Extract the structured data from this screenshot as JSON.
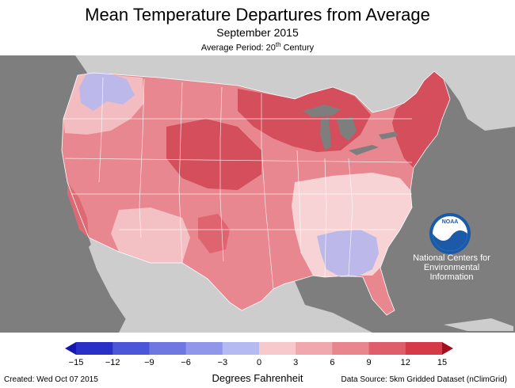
{
  "title": "Mean Temperature Departures from Average",
  "subtitle": "September 2015",
  "average_period": {
    "prefix": "Average Period: 20",
    "sup": "th",
    "suffix": " Century"
  },
  "logo": {
    "text": "NOAA",
    "icon": "noaa-logo-icon"
  },
  "institution": [
    "National Centers for",
    "Environmental",
    "Information"
  ],
  "legend": {
    "units": "Degrees Fahrenheit",
    "ticks": [
      "−15",
      "−12",
      "−9",
      "−6",
      "−3",
      "0",
      "3",
      "6",
      "9",
      "12",
      "15"
    ],
    "colors": [
      "#2a2fc8",
      "#4d55d8",
      "#6f77e0",
      "#9096ea",
      "#b6baf2",
      "#f7c9cd",
      "#f0a7ad",
      "#e8858d",
      "#de5f6b",
      "#d63a48"
    ],
    "end_low": "#1616b0",
    "end_high": "#a01020"
  },
  "map_colors": {
    "ocean": "#7e7e7e",
    "land_other": "#cdcdcd",
    "water_lakes": "#7e7e7e",
    "region_warm_dark": "#d44e5c",
    "region_warm": "#e47c86",
    "region_warm_light": "#f1aab0",
    "region_near_normal": "#f8d3d5",
    "region_cool": "#bcb8ea"
  },
  "created": "Created: Wed Oct 07 2015",
  "source": "Data Source: 5km Gridded Dataset (nClimGrid)"
}
